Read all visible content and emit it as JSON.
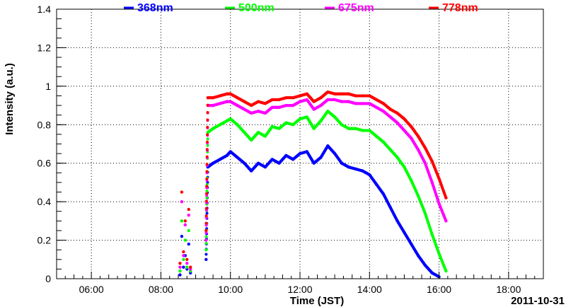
{
  "chart_data": {
    "type": "scatter",
    "title": "",
    "xlabel": "Time (JST)",
    "ylabel": "Intensity (a.u.)",
    "date_label": "2011-10-31",
    "x_unit": "hour of day (JST)",
    "xlim": [
      5.0,
      19.0
    ],
    "ylim": [
      0.0,
      1.4
    ],
    "xticks": [
      6,
      8,
      10,
      12,
      14,
      16,
      18
    ],
    "xtick_labels": [
      "06:00",
      "08:00",
      "10:00",
      "12:00",
      "14:00",
      "16:00",
      "18:00"
    ],
    "yticks": [
      0,
      0.2,
      0.4,
      0.6,
      0.8,
      1.0,
      1.2,
      1.4
    ],
    "ytick_labels": [
      "0",
      "0.2",
      "0.4",
      "0.6",
      "0.8",
      "1",
      "1.2",
      "1.4"
    ],
    "grid": true,
    "legend_position": "top",
    "series": [
      {
        "name": "368nm",
        "color": "#0000ff",
        "points": [
          [
            8.55,
            0.02
          ],
          [
            8.6,
            0.22
          ],
          [
            8.65,
            0.06
          ],
          [
            8.7,
            0.12
          ],
          [
            8.75,
            0.05
          ],
          [
            8.8,
            0.18
          ],
          [
            8.85,
            0.03
          ],
          [
            9.3,
            0.1
          ],
          [
            9.35,
            0.58
          ],
          [
            9.5,
            0.6
          ],
          [
            9.7,
            0.62
          ],
          [
            9.9,
            0.64
          ],
          [
            10.0,
            0.66
          ],
          [
            10.2,
            0.63
          ],
          [
            10.4,
            0.6
          ],
          [
            10.6,
            0.56
          ],
          [
            10.8,
            0.6
          ],
          [
            11.0,
            0.58
          ],
          [
            11.2,
            0.62
          ],
          [
            11.4,
            0.6
          ],
          [
            11.6,
            0.64
          ],
          [
            11.8,
            0.62
          ],
          [
            12.0,
            0.65
          ],
          [
            12.2,
            0.66
          ],
          [
            12.4,
            0.6
          ],
          [
            12.6,
            0.63
          ],
          [
            12.8,
            0.69
          ],
          [
            13.0,
            0.65
          ],
          [
            13.2,
            0.6
          ],
          [
            13.4,
            0.58
          ],
          [
            13.6,
            0.57
          ],
          [
            13.8,
            0.56
          ],
          [
            14.0,
            0.54
          ],
          [
            14.2,
            0.49
          ],
          [
            14.4,
            0.44
          ],
          [
            14.6,
            0.37
          ],
          [
            14.8,
            0.3
          ],
          [
            15.0,
            0.24
          ],
          [
            15.2,
            0.18
          ],
          [
            15.4,
            0.12
          ],
          [
            15.6,
            0.07
          ],
          [
            15.8,
            0.03
          ],
          [
            16.0,
            0.01
          ]
        ]
      },
      {
        "name": "500nm",
        "color": "#00ff00",
        "points": [
          [
            8.55,
            0.04
          ],
          [
            8.6,
            0.3
          ],
          [
            8.65,
            0.1
          ],
          [
            8.7,
            0.2
          ],
          [
            8.75,
            0.06
          ],
          [
            8.8,
            0.25
          ],
          [
            8.85,
            0.04
          ],
          [
            9.3,
            0.15
          ],
          [
            9.35,
            0.76
          ],
          [
            9.5,
            0.78
          ],
          [
            9.7,
            0.8
          ],
          [
            9.9,
            0.82
          ],
          [
            10.0,
            0.83
          ],
          [
            10.2,
            0.8
          ],
          [
            10.4,
            0.76
          ],
          [
            10.6,
            0.72
          ],
          [
            10.8,
            0.76
          ],
          [
            11.0,
            0.74
          ],
          [
            11.2,
            0.79
          ],
          [
            11.4,
            0.78
          ],
          [
            11.6,
            0.81
          ],
          [
            11.8,
            0.8
          ],
          [
            12.0,
            0.83
          ],
          [
            12.2,
            0.84
          ],
          [
            12.4,
            0.78
          ],
          [
            12.6,
            0.82
          ],
          [
            12.8,
            0.87
          ],
          [
            13.0,
            0.84
          ],
          [
            13.2,
            0.8
          ],
          [
            13.4,
            0.78
          ],
          [
            13.6,
            0.78
          ],
          [
            13.8,
            0.77
          ],
          [
            14.0,
            0.77
          ],
          [
            14.2,
            0.74
          ],
          [
            14.4,
            0.71
          ],
          [
            14.6,
            0.67
          ],
          [
            14.8,
            0.63
          ],
          [
            15.0,
            0.58
          ],
          [
            15.2,
            0.51
          ],
          [
            15.4,
            0.43
          ],
          [
            15.6,
            0.34
          ],
          [
            15.8,
            0.23
          ],
          [
            16.0,
            0.13
          ],
          [
            16.2,
            0.04
          ]
        ]
      },
      {
        "name": "675nm",
        "color": "#ff00ff",
        "points": [
          [
            8.55,
            0.06
          ],
          [
            8.6,
            0.4
          ],
          [
            8.65,
            0.12
          ],
          [
            8.7,
            0.28
          ],
          [
            8.75,
            0.08
          ],
          [
            8.8,
            0.33
          ],
          [
            8.85,
            0.05
          ],
          [
            9.3,
            0.2
          ],
          [
            9.35,
            0.9
          ],
          [
            9.5,
            0.9
          ],
          [
            9.7,
            0.91
          ],
          [
            9.9,
            0.92
          ],
          [
            10.0,
            0.92
          ],
          [
            10.2,
            0.9
          ],
          [
            10.4,
            0.88
          ],
          [
            10.6,
            0.86
          ],
          [
            10.8,
            0.87
          ],
          [
            11.0,
            0.86
          ],
          [
            11.2,
            0.89
          ],
          [
            11.4,
            0.89
          ],
          [
            11.6,
            0.9
          ],
          [
            11.8,
            0.9
          ],
          [
            12.0,
            0.92
          ],
          [
            12.2,
            0.93
          ],
          [
            12.4,
            0.88
          ],
          [
            12.6,
            0.9
          ],
          [
            12.8,
            0.93
          ],
          [
            13.0,
            0.93
          ],
          [
            13.2,
            0.92
          ],
          [
            13.4,
            0.92
          ],
          [
            13.6,
            0.91
          ],
          [
            13.8,
            0.91
          ],
          [
            14.0,
            0.91
          ],
          [
            14.2,
            0.89
          ],
          [
            14.4,
            0.87
          ],
          [
            14.6,
            0.84
          ],
          [
            14.8,
            0.81
          ],
          [
            15.0,
            0.77
          ],
          [
            15.2,
            0.73
          ],
          [
            15.4,
            0.67
          ],
          [
            15.6,
            0.6
          ],
          [
            15.8,
            0.5
          ],
          [
            16.0,
            0.39
          ],
          [
            16.2,
            0.3
          ]
        ]
      },
      {
        "name": "778nm",
        "color": "#ff0000",
        "points": [
          [
            8.55,
            0.08
          ],
          [
            8.6,
            0.45
          ],
          [
            8.65,
            0.14
          ],
          [
            8.7,
            0.3
          ],
          [
            8.75,
            0.1
          ],
          [
            8.8,
            0.36
          ],
          [
            8.85,
            0.06
          ],
          [
            9.3,
            0.25
          ],
          [
            9.35,
            0.94
          ],
          [
            9.5,
            0.94
          ],
          [
            9.7,
            0.95
          ],
          [
            9.9,
            0.96
          ],
          [
            10.0,
            0.96
          ],
          [
            10.2,
            0.94
          ],
          [
            10.4,
            0.92
          ],
          [
            10.6,
            0.9
          ],
          [
            10.8,
            0.92
          ],
          [
            11.0,
            0.91
          ],
          [
            11.2,
            0.93
          ],
          [
            11.4,
            0.93
          ],
          [
            11.6,
            0.94
          ],
          [
            11.8,
            0.94
          ],
          [
            12.0,
            0.95
          ],
          [
            12.2,
            0.96
          ],
          [
            12.4,
            0.92
          ],
          [
            12.6,
            0.94
          ],
          [
            12.8,
            0.97
          ],
          [
            13.0,
            0.96
          ],
          [
            13.2,
            0.96
          ],
          [
            13.4,
            0.96
          ],
          [
            13.6,
            0.95
          ],
          [
            13.8,
            0.95
          ],
          [
            14.0,
            0.95
          ],
          [
            14.2,
            0.93
          ],
          [
            14.4,
            0.91
          ],
          [
            14.6,
            0.88
          ],
          [
            14.8,
            0.86
          ],
          [
            15.0,
            0.83
          ],
          [
            15.2,
            0.79
          ],
          [
            15.4,
            0.74
          ],
          [
            15.6,
            0.68
          ],
          [
            15.8,
            0.61
          ],
          [
            16.0,
            0.52
          ],
          [
            16.2,
            0.42
          ]
        ]
      }
    ]
  }
}
